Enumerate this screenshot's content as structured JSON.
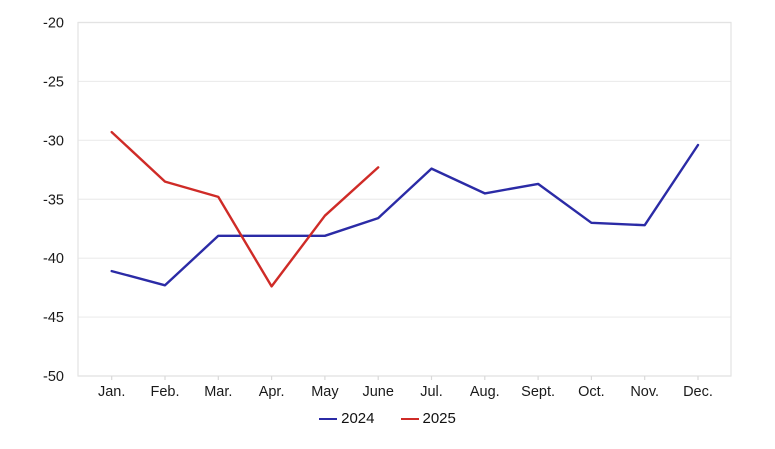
{
  "chart_data": {
    "type": "line",
    "title": "",
    "xlabel": "",
    "ylabel": "",
    "categories": [
      "Jan.",
      "Feb.",
      "Mar.",
      "Apr.",
      "May",
      "June",
      "Jul.",
      "Aug.",
      "Sept.",
      "Oct.",
      "Nov.",
      "Dec."
    ],
    "series": [
      {
        "name": "2024",
        "color": "#2b2ba6",
        "values": [
          -41.1,
          -42.3,
          -38.1,
          -38.1,
          -38.1,
          -36.6,
          -32.4,
          -34.5,
          -33.7,
          -37.0,
          -37.2,
          -30.4
        ]
      },
      {
        "name": "2025",
        "color": "#cf2b27",
        "values": [
          -29.3,
          -33.5,
          -34.8,
          -42.4,
          -36.4,
          -32.3
        ]
      }
    ],
    "ylim": [
      -50,
      -20
    ],
    "y_ticks": [
      -20,
      -25,
      -30,
      -35,
      -40,
      -45,
      -50
    ],
    "grid": true,
    "legend_position": "bottom",
    "colors": {
      "grid_line": "#ececec",
      "plot_border": "#e3e3e3",
      "tick_mark": "#d9d9d9",
      "axis_text": "#1a1a1a"
    }
  }
}
